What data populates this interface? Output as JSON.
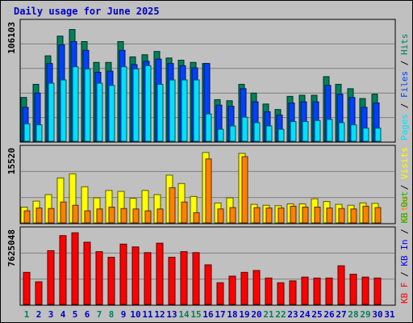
{
  "title": "Daily usage for June 2025",
  "colors": {
    "hits": "#00805c",
    "files": "#0040ff",
    "pages": "#00e0ff",
    "visits": "#ffff00",
    "sites": "#ff8000",
    "kbin": "#0000ff",
    "kbout": "#00c000",
    "kbf": "#ff0000",
    "weekend": "#00805c",
    "weekday": "#0000c8"
  },
  "chart_data": [
    {
      "type": "bar",
      "name": "hits-files-pages",
      "max_label": "106103",
      "ylim": [
        0,
        106103
      ],
      "legend": [
        "Pages",
        "Files",
        "Hits"
      ],
      "series": [
        {
          "name": "Hits",
          "values": [
            40000,
            52000,
            78000,
            96000,
            102000,
            91000,
            72000,
            72000,
            91000,
            77000,
            79000,
            82000,
            76000,
            74000,
            72000,
            71000,
            38000,
            37000,
            52000,
            44000,
            34000,
            29000,
            41000,
            42000,
            42000,
            59000,
            52000,
            48000,
            39000,
            43000
          ]
        },
        {
          "name": "Files",
          "values": [
            31000,
            44000,
            71000,
            88000,
            91000,
            83000,
            63000,
            64000,
            83000,
            70000,
            73000,
            75000,
            71000,
            69000,
            67000,
            71000,
            33000,
            32000,
            48000,
            36000,
            27000,
            24000,
            35000,
            36000,
            36000,
            51000,
            43000,
            40000,
            31000,
            35000
          ]
        },
        {
          "name": "Pages",
          "values": [
            16000,
            15000,
            53000,
            56000,
            68000,
            66000,
            53000,
            51000,
            68000,
            66000,
            69000,
            52000,
            56000,
            56000,
            56000,
            25000,
            11000,
            14000,
            22000,
            17000,
            14000,
            11000,
            18000,
            18000,
            19000,
            20000,
            17000,
            15000,
            12000,
            12000
          ]
        }
      ]
    },
    {
      "type": "bar",
      "name": "visits-sites",
      "max_label": "15520",
      "ylim": [
        0,
        15520
      ],
      "legend": [
        "Sites",
        "Visits"
      ],
      "series": [
        {
          "name": "Visits",
          "values": [
            3400,
            4700,
            6100,
            9700,
            10600,
            7800,
            5400,
            7000,
            6800,
            5300,
            7000,
            6100,
            10300,
            8500,
            5700,
            15200,
            4300,
            5400,
            15000,
            4000,
            3800,
            3700,
            4100,
            4100,
            5200,
            4600,
            4000,
            3800,
            4300,
            4200
          ]
        },
        {
          "name": "Sites",
          "values": [
            2600,
            3200,
            3100,
            4500,
            3800,
            2600,
            3000,
            3400,
            3100,
            3000,
            2600,
            3000,
            7600,
            4500,
            2200,
            13800,
            3000,
            3300,
            14300,
            3300,
            3200,
            3200,
            3600,
            3400,
            3400,
            3200,
            3100,
            3000,
            3600,
            3300
          ]
        }
      ]
    },
    {
      "type": "bar",
      "name": "kbf-kbin-kbout",
      "max_label": "7625048",
      "ylim": [
        0,
        7625048
      ],
      "legend": [
        "KB F",
        "KB In",
        "KB Out"
      ],
      "series": [
        {
          "name": "KB F",
          "values": [
            3400000,
            2400000,
            5700000,
            7300000,
            7600000,
            6600000,
            5600000,
            5000000,
            6400000,
            6100000,
            5500000,
            6500000,
            5000000,
            5600000,
            5500000,
            4200000,
            2300000,
            3000000,
            3400000,
            3600000,
            2800000,
            2300000,
            2500000,
            2900000,
            2800000,
            2800000,
            4100000,
            3200000,
            2900000,
            2800000
          ]
        }
      ]
    }
  ],
  "x_labels": [
    {
      "label": "1",
      "weekend": true
    },
    {
      "label": "2",
      "weekend": false
    },
    {
      "label": "3",
      "weekend": false
    },
    {
      "label": "4",
      "weekend": false
    },
    {
      "label": "5",
      "weekend": false
    },
    {
      "label": "6",
      "weekend": false
    },
    {
      "label": "7",
      "weekend": true
    },
    {
      "label": "8",
      "weekend": true
    },
    {
      "label": "9",
      "weekend": false
    },
    {
      "label": "10",
      "weekend": false
    },
    {
      "label": "11",
      "weekend": false
    },
    {
      "label": "12",
      "weekend": false
    },
    {
      "label": "13",
      "weekend": false
    },
    {
      "label": "14",
      "weekend": true
    },
    {
      "label": "15",
      "weekend": true
    },
    {
      "label": "16",
      "weekend": false
    },
    {
      "label": "17",
      "weekend": false
    },
    {
      "label": "18",
      "weekend": false
    },
    {
      "label": "19",
      "weekend": false
    },
    {
      "label": "20",
      "weekend": false
    },
    {
      "label": "21",
      "weekend": true
    },
    {
      "label": "22",
      "weekend": true
    },
    {
      "label": "23",
      "weekend": false
    },
    {
      "label": "24",
      "weekend": false
    },
    {
      "label": "25",
      "weekend": false
    },
    {
      "label": "26",
      "weekend": false
    },
    {
      "label": "27",
      "weekend": false
    },
    {
      "label": "28",
      "weekend": true
    },
    {
      "label": "29",
      "weekend": true
    },
    {
      "label": "30",
      "weekend": false
    },
    {
      "label": "31",
      "weekend": false
    }
  ]
}
